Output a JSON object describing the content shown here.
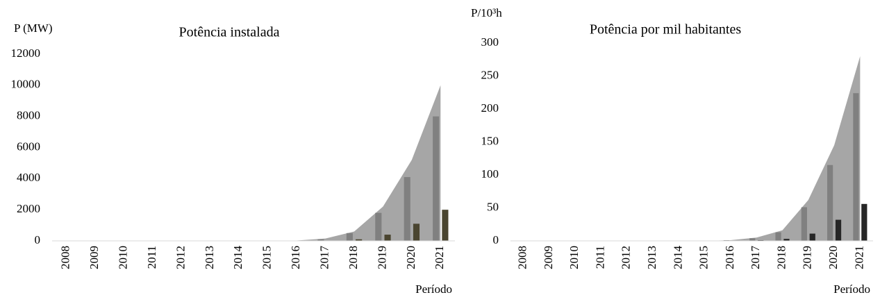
{
  "chart_data": [
    {
      "type": "area-bar",
      "title": "Potência instalada",
      "y_label": "P (MW)",
      "x_label": "Período",
      "categories": [
        "2008",
        "2009",
        "2010",
        "2011",
        "2012",
        "2013",
        "2014",
        "2015",
        "2016",
        "2017",
        "2018",
        "2019",
        "2020",
        "2021"
      ],
      "series": [
        {
          "kind": "area",
          "color": "#a6a6a6",
          "values": [
            0,
            0,
            0,
            0,
            0,
            0,
            0,
            0,
            20,
            150,
            600,
            2200,
            5200,
            10000
          ]
        },
        {
          "kind": "bar",
          "color": "#808080",
          "values": [
            0,
            0,
            0,
            0,
            0,
            0,
            0,
            0,
            10,
            100,
            500,
            1800,
            4100,
            8000
          ]
        },
        {
          "kind": "bar",
          "color": "#4a4530",
          "values": [
            0,
            0,
            0,
            0,
            0,
            0,
            0,
            0,
            0,
            20,
            100,
            400,
            1100,
            2000
          ]
        }
      ],
      "ylim": [
        0,
        12000
      ],
      "yticks": [
        0,
        2000,
        4000,
        6000,
        8000,
        10000,
        12000
      ]
    },
    {
      "type": "area-bar",
      "title": "Potência por mil habitantes",
      "y_label": "P/10³h",
      "x_label": "Período",
      "categories": [
        "2008",
        "2009",
        "2010",
        "2011",
        "2012",
        "2013",
        "2014",
        "2015",
        "2016",
        "2017",
        "2018",
        "2019",
        "2020",
        "2021"
      ],
      "series": [
        {
          "kind": "area",
          "color": "#a6a6a6",
          "values": [
            0,
            0,
            0,
            0,
            0,
            0,
            0,
            0,
            1,
            5,
            16,
            62,
            145,
            280
          ]
        },
        {
          "kind": "bar",
          "color": "#808080",
          "values": [
            0,
            0,
            0,
            0,
            0,
            0,
            0,
            0,
            1,
            4,
            13,
            51,
            115,
            224
          ]
        },
        {
          "kind": "bar",
          "color": "#262626",
          "values": [
            0,
            0,
            0,
            0,
            0,
            0,
            0,
            0,
            0,
            1,
            3,
            11,
            32,
            56
          ]
        }
      ],
      "ylim": [
        0,
        300
      ],
      "yticks": [
        0,
        50,
        100,
        150,
        200,
        250,
        300
      ]
    }
  ]
}
